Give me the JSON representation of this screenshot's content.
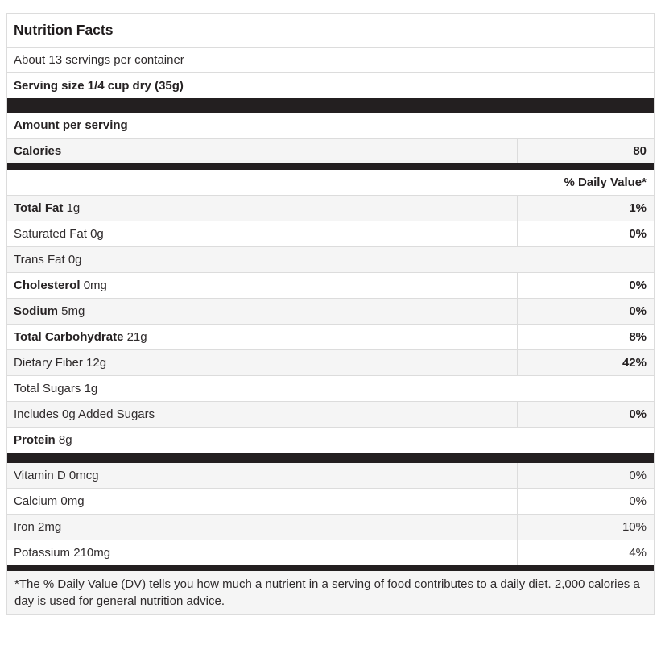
{
  "colors": {
    "bar": "#231f20",
    "row_shade": "#f5f5f5",
    "border": "#dcdcdc",
    "text": "#2f2b2c"
  },
  "header": {
    "title": "Nutrition Facts",
    "servings_per_container": "About 13 servings per container",
    "serving_size": "Serving size 1/4 cup dry (35g)",
    "amount_per_serving": "Amount per serving",
    "calories_label": "Calories",
    "calories_value": "80",
    "daily_value_header": "% Daily Value*"
  },
  "rows": [
    {
      "name": "Total Fat",
      "amount": "1g",
      "dv": "1%"
    },
    {
      "name": "Saturated Fat",
      "amount": "0g",
      "dv": "0%"
    },
    {
      "name": "Trans Fat",
      "amount": "0g",
      "dv": ""
    },
    {
      "name": "Cholesterol",
      "amount": "0mg",
      "dv": "0%"
    },
    {
      "name": "Sodium",
      "amount": "5mg",
      "dv": "0%"
    },
    {
      "name": "Total Carbohydrate",
      "amount": "21g",
      "dv": "8%"
    },
    {
      "name": "Dietary Fiber",
      "amount": "12g",
      "dv": "42%"
    },
    {
      "name": "Total Sugars",
      "amount": "1g",
      "dv": ""
    },
    {
      "name": "Includes 0g Added Sugars",
      "amount": "",
      "dv": "0%"
    },
    {
      "name": "Protein",
      "amount": "8g",
      "dv": ""
    },
    {
      "name": "Vitamin D",
      "amount": "0mcg",
      "dv": "0%"
    },
    {
      "name": "Calcium",
      "amount": "0mg",
      "dv": "0%"
    },
    {
      "name": "Iron",
      "amount": "2mg",
      "dv": "10%"
    },
    {
      "name": "Potassium",
      "amount": "210mg",
      "dv": "4%"
    }
  ],
  "footnote": "*The % Daily Value (DV) tells you how much a nutrient in a serving of food contributes to a daily diet. 2,000 calories a day is used for general nutrition advice."
}
